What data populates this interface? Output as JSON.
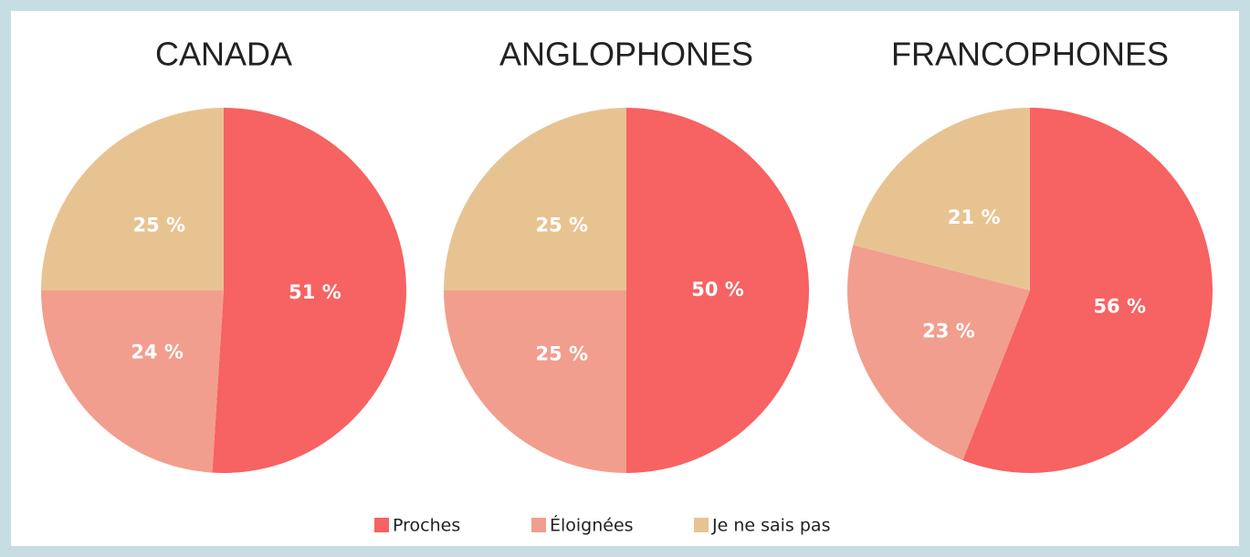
{
  "legend": {
    "categories": [
      "Proches",
      "Éloignées",
      "Je ne sais pas"
    ],
    "colors": [
      "#f76262",
      "#f19e8e",
      "#e8c392"
    ]
  },
  "chart_data": [
    {
      "type": "pie",
      "title": "CANADA",
      "values": [
        51,
        24,
        25
      ],
      "value_labels": [
        "51 %",
        "24 %",
        "25 %"
      ]
    },
    {
      "type": "pie",
      "title": "ANGLOPHONES",
      "values": [
        50,
        25,
        25
      ],
      "value_labels": [
        "50 %",
        "25 %",
        "25 %"
      ]
    },
    {
      "type": "pie",
      "title": "FRANCOPHONES",
      "values": [
        56,
        23,
        21
      ],
      "value_labels": [
        "56 %",
        "23 %",
        "21 %"
      ]
    }
  ]
}
